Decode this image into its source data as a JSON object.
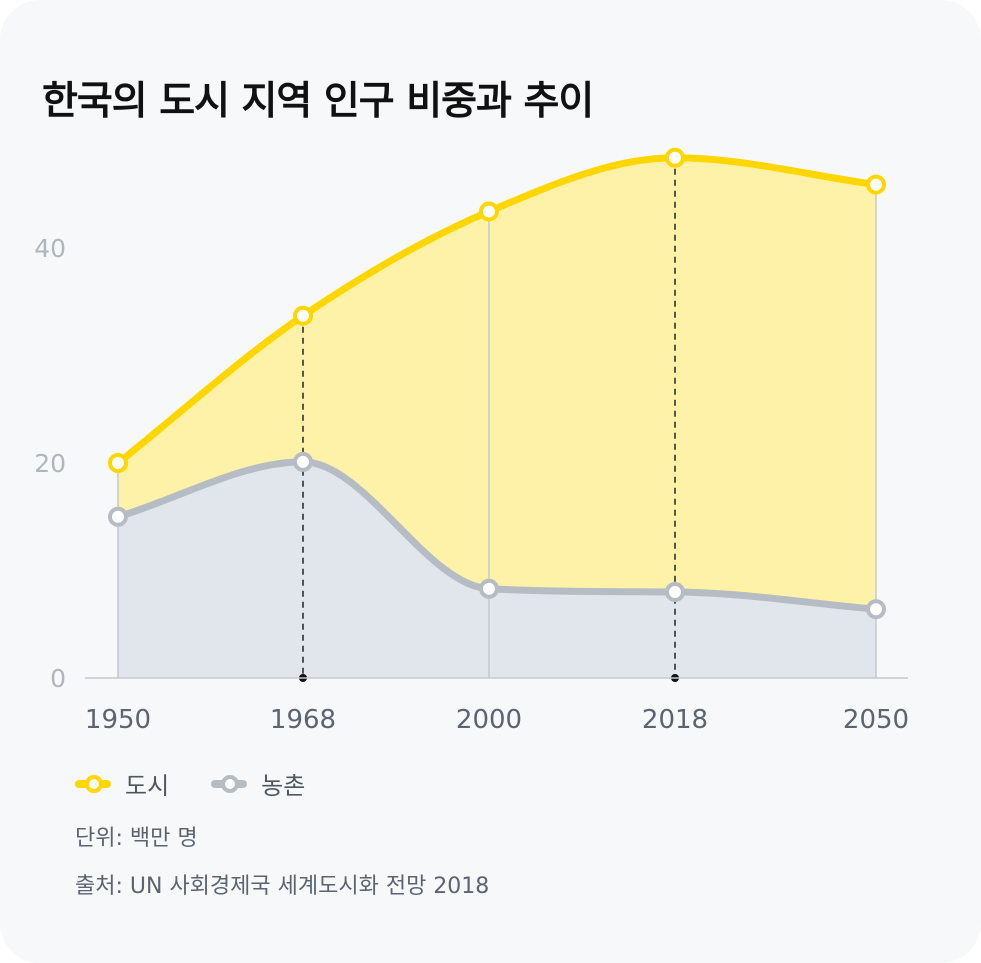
{
  "title": "한국의 도시 지역 인구 비중과 추이",
  "chart_data": {
    "type": "area",
    "title": "한국의 도시 지역 인구 비중과 추이",
    "categories": [
      "1950",
      "1968",
      "2000",
      "2018",
      "2050"
    ],
    "highlighted_categories": [
      "1968",
      "2018"
    ],
    "series": [
      {
        "name": "도시",
        "color": "#ffd600",
        "fill": "#fdf2a8",
        "values": [
          20.0,
          33.7,
          43.4,
          48.4,
          45.9
        ]
      },
      {
        "name": "농촌",
        "color": "#b6bcc3",
        "fill": "#e1e5ec",
        "values": [
          15.0,
          20.1,
          8.3,
          8.0,
          6.4
        ]
      }
    ],
    "yticks": [
      0,
      20,
      40
    ],
    "ylim": [
      0,
      50
    ],
    "grid": false,
    "legend": "bottom-left"
  },
  "unit_note": "단위: 백만 명",
  "source_note": "출처: UN 사회경제국 세계도시화 전망 2018"
}
